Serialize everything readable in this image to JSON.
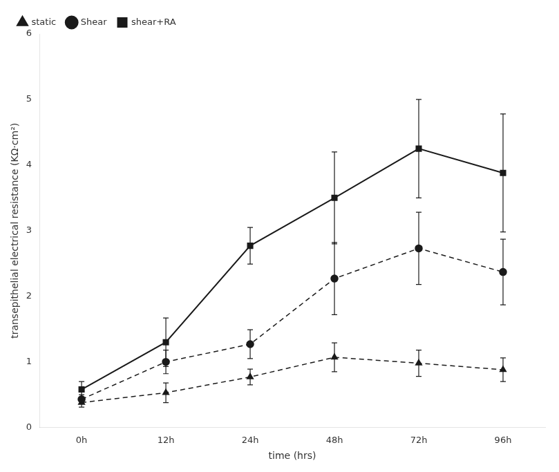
{
  "chart_data": {
    "type": "line",
    "xlabel": "time (hrs)",
    "ylabel": "transepithelial electrical resistance (KΩ·cm²)",
    "categories": [
      "0h",
      "12h",
      "24h",
      "48h",
      "72h",
      "96h"
    ],
    "series": [
      {
        "name": "static",
        "color": "#1a1a1a",
        "marker": "triangle",
        "line_style": "dashed",
        "values": [
          0.38,
          0.53,
          0.77,
          1.07,
          0.98,
          0.88
        ],
        "yerr": [
          0.07,
          0.15,
          0.12,
          0.22,
          0.2,
          0.18
        ]
      },
      {
        "name": "Shear",
        "color": "#1a1a1a",
        "marker": "circle",
        "line_style": "dashed",
        "values": [
          0.43,
          1.0,
          1.27,
          2.27,
          2.73,
          2.37
        ],
        "yerr": [
          0.07,
          0.18,
          0.22,
          0.55,
          0.55,
          0.5
        ]
      },
      {
        "name": "shear+RA",
        "color": "#1a1a1a",
        "marker": "square",
        "line_style": "solid",
        "values": [
          0.58,
          1.3,
          2.77,
          3.5,
          4.25,
          3.88
        ],
        "yerr": [
          0.12,
          0.37,
          0.28,
          0.7,
          0.75,
          0.9
        ]
      }
    ],
    "ylim": [
      0,
      6
    ],
    "yticks": [
      0,
      1,
      2,
      3,
      4,
      5,
      6
    ],
    "legend": "upper left",
    "grid": false
  }
}
